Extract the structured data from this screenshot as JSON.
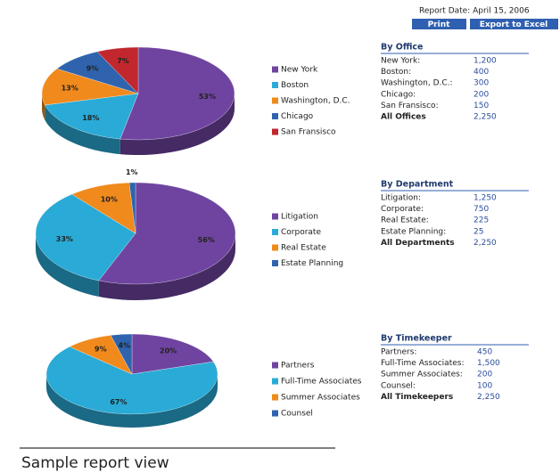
{
  "report_date": "Report Date: April 15, 2006",
  "buttons": [
    "Print",
    "Export to Excel"
  ],
  "chart_data": [
    {
      "type": "pie",
      "categories": [
        "New York",
        "Boston",
        "Washington, D.C.",
        "Chicago",
        "San Fransisco"
      ],
      "values": [
        53,
        18,
        13,
        9,
        7
      ],
      "value_labels": [
        "53%",
        "18%",
        "13%",
        "9%",
        "7%"
      ],
      "colors": [
        "#6f44a0",
        "#2aaad6",
        "#f08a1c",
        "#2f63ad",
        "#c1272d"
      ]
    },
    {
      "type": "pie",
      "categories": [
        "Litigation",
        "Corporate",
        "Real Estate",
        "Estate Planning"
      ],
      "values": [
        56,
        33,
        10,
        1
      ],
      "value_labels": [
        "56%",
        "33%",
        "10%",
        "1%"
      ],
      "colors": [
        "#6f44a0",
        "#2aaad6",
        "#f08a1c",
        "#2f63ad"
      ]
    },
    {
      "type": "pie",
      "categories": [
        "Partners",
        "Full-Time Associates",
        "Summer Associates",
        "Counsel"
      ],
      "values": [
        20,
        67,
        9,
        4
      ],
      "value_labels": [
        "20%",
        "67%",
        "9%",
        "4%"
      ],
      "colors": [
        "#6f44a0",
        "#2aaad6",
        "#f08a1c",
        "#2f63ad"
      ]
    }
  ],
  "tables": [
    {
      "title": "By Office",
      "rows": [
        [
          "New York:",
          "1,200"
        ],
        [
          "Boston:",
          "400"
        ],
        [
          "Washington, D.C.:",
          "300"
        ],
        [
          "Chicago:",
          "200"
        ],
        [
          "San Fransisco:",
          "150"
        ]
      ],
      "total": [
        "All Offices",
        "2,250"
      ]
    },
    {
      "title": "By Department",
      "rows": [
        [
          "Litigation:",
          "1,250"
        ],
        [
          "Corporate:",
          "750"
        ],
        [
          "Real Estate:",
          "225"
        ],
        [
          "Estate Planning:",
          "25"
        ]
      ],
      "total": [
        "All Departments",
        "2,250"
      ]
    },
    {
      "title": "By Timekeeper",
      "rows": [
        [
          "Partners:",
          "450"
        ],
        [
          "Full-Time Associates:",
          "1,500"
        ],
        [
          "Summer Associates:",
          "200"
        ],
        [
          "Counsel:",
          "100"
        ]
      ],
      "total": [
        "All Timekeepers",
        "2,250"
      ]
    }
  ],
  "caption": "Sample report view"
}
